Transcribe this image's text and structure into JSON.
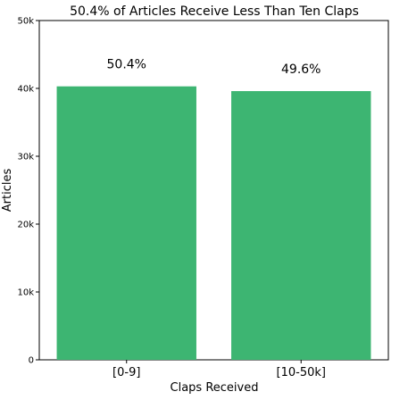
{
  "chart_data": {
    "type": "bar",
    "title": "50.4% of Articles Receive Less Than Ten Claps",
    "xlabel": "Claps Received",
    "ylabel": "Articles",
    "categories": [
      "[0-9]",
      "[10-50k]"
    ],
    "values": [
      40300,
      39600
    ],
    "data_labels": [
      "50.4%",
      "49.6%"
    ],
    "ylim": [
      0,
      50000
    ],
    "yticks": [
      0,
      10000,
      20000,
      30000,
      40000,
      50000
    ],
    "ytick_labels": [
      "0",
      "10k",
      "20k",
      "30k",
      "40k",
      "50k"
    ],
    "bar_color": "#3db572",
    "grid": false
  }
}
